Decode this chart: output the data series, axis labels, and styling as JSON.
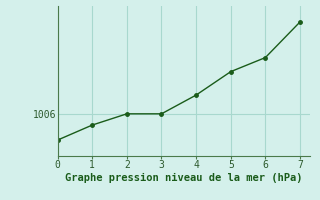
{
  "x": [
    0,
    1,
    2,
    3,
    4,
    5,
    6,
    7
  ],
  "y": [
    1003.2,
    1004.8,
    1006.0,
    1006.0,
    1008.0,
    1010.5,
    1012.0,
    1015.8
  ],
  "line_color": "#1a5c1a",
  "bg_color": "#d4f0eb",
  "grid_color": "#a8d8ce",
  "xlabel": "Graphe pression niveau de la mer (hPa)",
  "xlabel_color": "#1a5c1a",
  "xlabel_fontsize": 7.5,
  "ytick_labels": [
    "1006"
  ],
  "ytick_values": [
    1006
  ],
  "xlim": [
    0,
    7.3
  ],
  "ylim": [
    1001.5,
    1017.5
  ],
  "marker": "o",
  "marker_size": 2.5,
  "line_width": 1.0,
  "tick_color": "#2d5a2d",
  "tick_fontsize": 7,
  "spine_color": "#4a7a4a"
}
